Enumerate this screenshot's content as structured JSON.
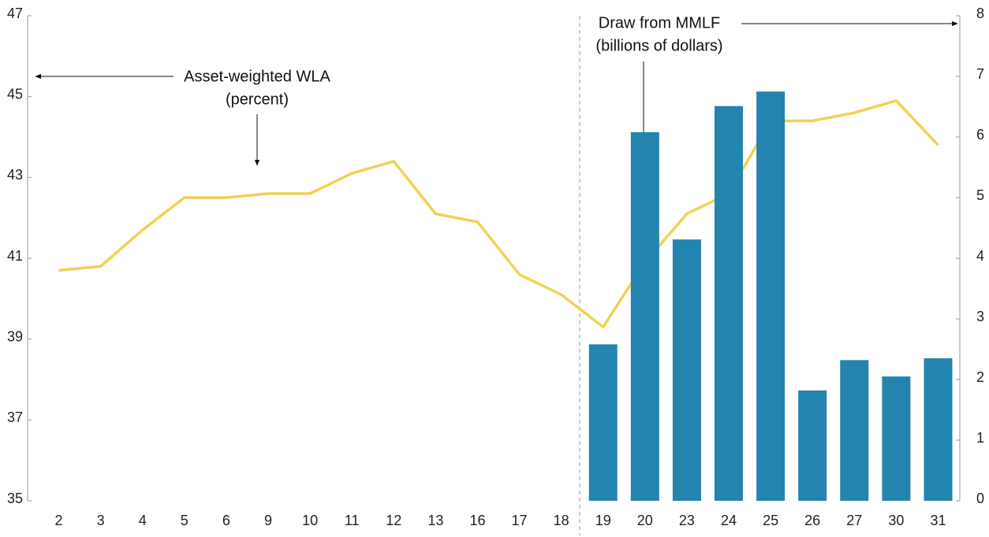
{
  "chart_data": {
    "type": "bar-line",
    "categories": [
      "2",
      "3",
      "4",
      "5",
      "6",
      "9",
      "10",
      "11",
      "12",
      "13",
      "16",
      "17",
      "18",
      "19",
      "20",
      "23",
      "24",
      "25",
      "26",
      "27",
      "30",
      "31"
    ],
    "series": [
      {
        "type": "line",
        "color": "#efd255",
        "values": [
          40.7,
          40.8,
          41.7,
          42.5,
          42.5,
          42.6,
          42.6,
          43.1,
          43.4,
          42.1,
          41.9,
          40.6,
          40.1,
          39.3,
          40.9,
          42.1,
          42.6,
          44.4,
          44.4,
          44.6,
          44.9,
          43.8
        ]
      },
      {
        "type": "bar",
        "axis": "y2",
        "color": "#2384b0",
        "values": [
          null,
          null,
          null,
          null,
          null,
          null,
          null,
          null,
          null,
          null,
          null,
          null,
          null,
          2.58,
          6.08,
          4.31,
          6.51,
          6.75,
          1.82,
          2.32,
          2.05,
          2.35
        ]
      }
    ],
    "ylim": [
      35,
      47
    ],
    "yticks": [
      35,
      37,
      39,
      41,
      43,
      45,
      47
    ],
    "y2lim": [
      0,
      8
    ],
    "y2ticks": [
      0,
      1,
      2,
      3,
      4,
      5,
      6,
      7,
      8
    ],
    "annotations": [
      "Asset-weighted WLA",
      "(percent)",
      "Draw from MMLF",
      "(billions of dollars)"
    ]
  }
}
